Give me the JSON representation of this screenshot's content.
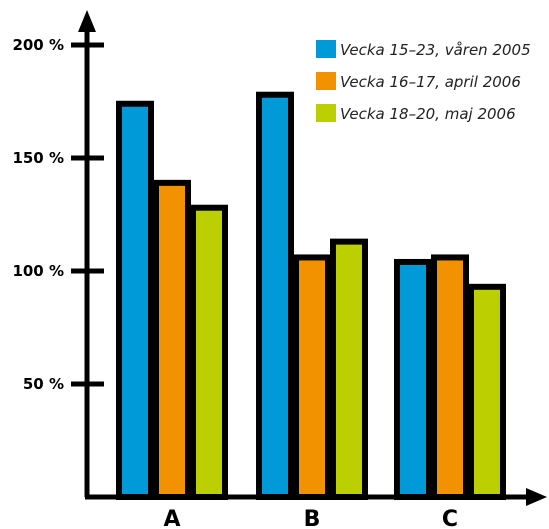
{
  "chart_data": {
    "type": "bar",
    "categories": [
      "A",
      "B",
      "C"
    ],
    "series": [
      {
        "name": "Vecka 15–23, våren 2005",
        "color": "#009ad8",
        "values": [
          174,
          178,
          104
        ]
      },
      {
        "name": "Vecka 16–17, april 2006",
        "color": "#f39200",
        "values": [
          139,
          106,
          106
        ]
      },
      {
        "name": "Vecka 18–20, maj 2006",
        "color": "#bccf00",
        "values": [
          128,
          113,
          93
        ]
      }
    ],
    "yticks": [
      {
        "value": 50,
        "label": "50 %"
      },
      {
        "value": 100,
        "label": "100 %"
      },
      {
        "value": 150,
        "label": "150 %"
      },
      {
        "value": 200,
        "label": "200 %"
      }
    ],
    "ylim": [
      0,
      200
    ],
    "legend_position": "top-right",
    "grid": false,
    "title": "",
    "xlabel": "",
    "ylabel": ""
  }
}
